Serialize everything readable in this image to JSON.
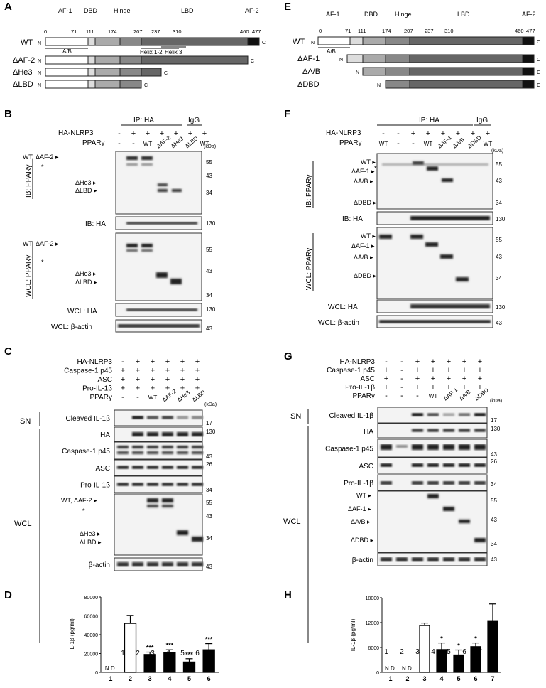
{
  "panels": {
    "A": {
      "letter": "A",
      "domains": [
        "AF-1",
        "DBD",
        "Hinge",
        "LBD",
        "AF-2"
      ],
      "positions": [
        "0",
        "71",
        "111",
        "174",
        "207",
        "237",
        "310",
        "460",
        "477"
      ],
      "sub_ab": "A/B",
      "helix12": "Helix 1-2",
      "helix3": "Helix 3",
      "constructs": [
        "WT",
        "ΔAF-2",
        "ΔHe3",
        "ΔLBD"
      ],
      "n": "N",
      "c": "C"
    },
    "E": {
      "letter": "E",
      "domains": [
        "AF-1",
        "DBD",
        "Hinge",
        "LBD",
        "AF-2"
      ],
      "positions": [
        "0",
        "71",
        "111",
        "174",
        "207",
        "237",
        "310",
        "460",
        "477"
      ],
      "sub_ab": "A/B",
      "constructs": [
        "WT",
        "ΔAF-1",
        "ΔA/B",
        "ΔDBD"
      ],
      "n": "N",
      "c": "C"
    },
    "B": {
      "letter": "B",
      "ip": "IP: HA",
      "igg": "IgG",
      "row1": "HA-NLRP3",
      "row2": "PPARγ",
      "row1_vals": [
        "-",
        "+",
        "+",
        "+",
        "+",
        "+",
        "+"
      ],
      "row2_vals": [
        "-",
        "-",
        "WT",
        "ΔAF-2",
        "ΔHe3",
        "ΔLBD",
        "WT"
      ],
      "kda": "(kDa)",
      "ib1": "IB: PPARγ",
      "ib2": "IB: HA",
      "wcl1": "WCL: PPARγ",
      "wcl2": "WCL: HA",
      "wcl3": "WCL: β-actin",
      "band_wt": "WT, ΔAF-2 ▸",
      "band_he3": "ΔHe3 ▸",
      "band_lbd": "ΔLBD ▸",
      "star": "*",
      "mw1": [
        "55",
        "43",
        "34"
      ],
      "mw_ha": "130",
      "mw_wcl": [
        "55",
        "43",
        "34"
      ],
      "mw_ha2": "130",
      "mw_actin": "43"
    },
    "F": {
      "letter": "F",
      "ip": "IP: HA",
      "igg": "IgG",
      "row1": "HA-NLRP3",
      "row2": "PPARγ",
      "row1_vals": [
        "-",
        "-",
        "+",
        "+",
        "+",
        "+",
        "+",
        "+"
      ],
      "row2_vals": [
        "WT",
        "-",
        "-",
        "WT",
        "ΔAF-1",
        "ΔA/B",
        "ΔDBD",
        "WT"
      ],
      "kda": "(kDa)",
      "ib1": "IB: PPARγ",
      "ib2": "IB: HA",
      "wcl1": "WCL: PPARγ",
      "wcl2": "WCL: HA",
      "wcl3": "WCL: β-actin",
      "band_wt": "WT ▸",
      "band_af1": "ΔAF-1 ▸",
      "band_ab": "ΔA/B ▸",
      "band_dbd": "ΔDBD ▸",
      "star": "*",
      "mw1": [
        "55",
        "43",
        "34"
      ],
      "mw_ha": "130",
      "mw_wcl": [
        "55",
        "43",
        "34"
      ],
      "mw_ha2": "130",
      "mw_actin": "43"
    },
    "C": {
      "letter": "C",
      "rows": [
        "HA-NLRP3",
        "Caspase-1 p45",
        "ASC",
        "Pro-IL-1β",
        "PPARγ"
      ],
      "row_vals": [
        [
          "-",
          "+",
          "+",
          "+",
          "+",
          "+"
        ],
        [
          "+",
          "+",
          "+",
          "+",
          "+",
          "+"
        ],
        [
          "+",
          "+",
          "+",
          "+",
          "+",
          "+"
        ],
        [
          "+",
          "+",
          "+",
          "+",
          "+",
          "+"
        ],
        [
          "-",
          "-",
          "WT",
          "ΔAF-2",
          "ΔHe3",
          "ΔLBD"
        ]
      ],
      "kda": "(kDa)",
      "sn": "SN",
      "wcl": "WCL",
      "blots": [
        "Cleaved IL-1β",
        "HA",
        "Caspase-1 p45",
        "ASC",
        "Pro-IL-1β",
        "β-actin"
      ],
      "mw": [
        "17",
        "130",
        "43",
        "26",
        "34",
        "55",
        "43",
        "34",
        "43"
      ],
      "band_wt": "WT, ΔAF-2 ▸",
      "band_he3": "ΔHe3 ▸",
      "band_lbd": "ΔLBD ▸",
      "star": "*",
      "lanes": [
        "1",
        "2",
        "3",
        "4",
        "5",
        "6"
      ]
    },
    "G": {
      "letter": "G",
      "rows": [
        "HA-NLRP3",
        "Caspase-1 p45",
        "ASC",
        "Pro-IL-1β",
        "PPARγ"
      ],
      "row_vals": [
        [
          "-",
          "-",
          "+",
          "+",
          "+",
          "+",
          "+"
        ],
        [
          "+",
          "-",
          "+",
          "+",
          "+",
          "+",
          "+"
        ],
        [
          "+",
          "-",
          "+",
          "+",
          "+",
          "+",
          "+"
        ],
        [
          "+",
          "-",
          "+",
          "+",
          "+",
          "+",
          "+"
        ],
        [
          "-",
          "-",
          "-",
          "WT",
          "ΔAF-1",
          "ΔA/B",
          "ΔDBD"
        ]
      ],
      "kda": "(kDa)",
      "sn": "SN",
      "wcl": "WCL",
      "blots": [
        "Cleaved IL-1β",
        "HA",
        "Caspase-1 p45",
        "ASC",
        "Pro-IL-1β",
        "β-actin"
      ],
      "mw": [
        "17",
        "130",
        "43",
        "26",
        "34",
        "55",
        "43",
        "34",
        "43"
      ],
      "band_wt": "WT ▸",
      "band_af1": "ΔAF-1 ▸",
      "band_ab": "ΔA/B ▸",
      "band_dbd": "ΔDBD ▸",
      "lanes": [
        "1",
        "2",
        "3",
        "4",
        "5",
        "6",
        "7"
      ]
    }
  },
  "chart_data": [
    {
      "type": "bar",
      "panel": "D",
      "ylabel": "IL-1β (pg/ml)",
      "categories": [
        "1",
        "2",
        "3",
        "4",
        "5",
        "6"
      ],
      "values": [
        0,
        52000,
        19000,
        21000,
        11000,
        24000
      ],
      "errors": [
        0,
        8500,
        2500,
        3000,
        3500,
        6500
      ],
      "fill": [
        "none",
        "open",
        "filled",
        "filled",
        "filled",
        "filled"
      ],
      "labels": [
        "N.D.",
        "",
        "***",
        "***",
        "***",
        "***"
      ],
      "yticks": [
        "0",
        "20000",
        "40000",
        "60000",
        "80000"
      ],
      "ylim": [
        0,
        80000
      ]
    },
    {
      "type": "bar",
      "panel": "H",
      "ylabel": "IL-1β (pg/ml)",
      "categories": [
        "1",
        "2",
        "3",
        "4",
        "5",
        "6",
        "7"
      ],
      "values": [
        0,
        0,
        11300,
        5500,
        4200,
        6200,
        12300
      ],
      "errors": [
        0,
        0,
        600,
        1600,
        1200,
        900,
        4200
      ],
      "fill": [
        "none",
        "none",
        "open",
        "filled",
        "filled",
        "filled",
        "filled"
      ],
      "labels": [
        "N.D.",
        "N.D.",
        "",
        "*",
        "*",
        "*",
        ""
      ],
      "yticks": [
        "0",
        "6000",
        "12000",
        "18000"
      ],
      "ylim": [
        0,
        18000
      ]
    }
  ]
}
